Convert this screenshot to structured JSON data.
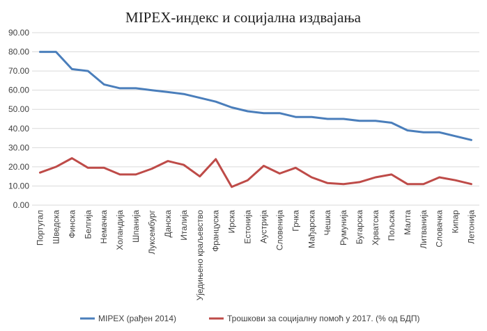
{
  "chart_data": {
    "type": "line",
    "title": "MIPEX-индекс и социјална издвајања",
    "xlabel": "",
    "ylabel": "",
    "ylim": [
      0,
      90
    ],
    "ytick_step": 10,
    "ytick_labels": [
      "0.00",
      "10.00",
      "20.00",
      "30.00",
      "40.00",
      "50.00",
      "60.00",
      "70.00",
      "80.00",
      "90.00"
    ],
    "grid": true,
    "legend": "bottom",
    "categories": [
      "Португал",
      "Шведска",
      "Финска",
      "Белгија",
      "Немачка",
      "Холандија",
      "Шпанија",
      "Луксембург",
      "Данска",
      "Италија",
      "Уједињено краљевство",
      "Француска",
      "Ирска",
      "Естонија",
      "Аустрија",
      "Словенија",
      "Грчка",
      "Мађарска",
      "Чешка",
      "Румунија",
      "Бугарска",
      "Хрватска",
      "Пољска",
      "Малта",
      "Литванија",
      "Словачка",
      "Кипар",
      "Летонија"
    ],
    "series": [
      {
        "name": "MIPEX (рађен 2014)",
        "color": "#4a7ebb",
        "values": [
          80,
          80,
          71,
          70,
          63,
          61,
          61,
          60,
          59,
          58,
          56,
          54,
          51,
          49,
          48,
          48,
          46,
          46,
          45,
          45,
          44,
          44,
          43,
          39,
          38,
          38,
          36,
          34
        ]
      },
      {
        "name": "Трошкови за социјалну помоћ у 2017. (% од БДП)",
        "color": "#be4b48",
        "values": [
          17,
          20,
          24.5,
          19.5,
          19.5,
          16,
          16,
          19,
          23,
          21,
          15,
          24,
          9.5,
          13,
          20.5,
          16.5,
          19.5,
          14.5,
          11.5,
          11,
          12,
          14.5,
          16,
          11,
          11,
          14.5,
          13,
          11
        ]
      }
    ]
  }
}
